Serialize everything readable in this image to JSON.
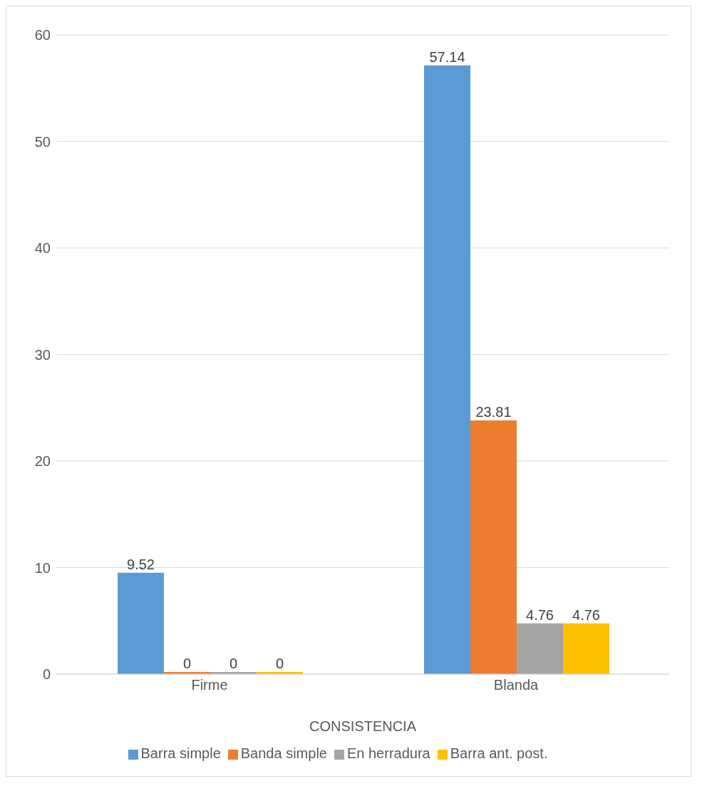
{
  "chart_data": {
    "type": "bar",
    "xlabel": "CONSISTENCIA",
    "categories": [
      "Firme",
      "Blanda"
    ],
    "series": [
      {
        "name": "Barra simple",
        "color": "#5b9bd5",
        "values": [
          9.52,
          57.14
        ]
      },
      {
        "name": "Banda simple",
        "color": "#ed7d31",
        "values": [
          0,
          23.81
        ]
      },
      {
        "name": "En herradura",
        "color": "#a5a5a5",
        "values": [
          0,
          4.76
        ]
      },
      {
        "name": "Barra ant. post.",
        "color": "#ffc000",
        "values": [
          0,
          4.76
        ]
      }
    ],
    "ylim": [
      0,
      60
    ],
    "yticks": [
      0,
      10,
      20,
      30,
      40,
      50,
      60
    ],
    "grid": "y",
    "legend": "bottom",
    "data_labels": true
  }
}
